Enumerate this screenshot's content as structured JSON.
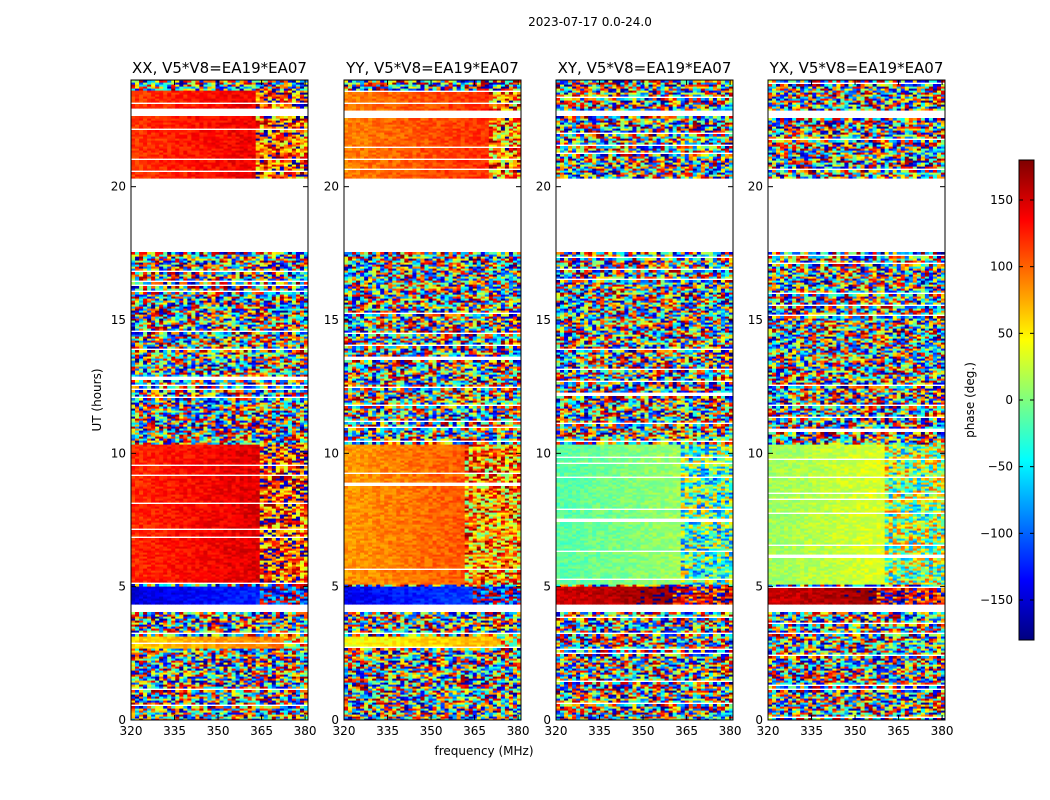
{
  "suptitle": "2023-07-17 0.0-24.0",
  "colorbar": {
    "label": "phase (deg.)",
    "min": -180,
    "max": 180,
    "ticks": [
      150,
      100,
      50,
      0,
      -50,
      -100,
      -150
    ],
    "tick_labels": [
      "150",
      "100",
      "50",
      "0",
      "−50",
      "−100",
      "−150"
    ],
    "colormap": "jet",
    "colors": [
      "#00007f",
      "#0000ff",
      "#007fff",
      "#00ffff",
      "#7fff7f",
      "#ffff00",
      "#ff7f00",
      "#ff0000",
      "#7f0000"
    ]
  },
  "chart_data": [
    {
      "type": "heatmap",
      "title": "XX, V5*V8=EA19*EA07",
      "product": "XX",
      "xlabel": "",
      "ylabel": "UT (hours)",
      "xlim": [
        320,
        381
      ],
      "ylim": [
        0,
        24
      ],
      "xticks": [
        320,
        335,
        350,
        365,
        380
      ],
      "xtick_labels": [
        "320",
        "335",
        "350",
        "365",
        "380"
      ],
      "yticks": [
        0,
        5,
        10,
        15,
        20
      ],
      "ytick_labels": [
        "0",
        "5",
        "10",
        "15",
        "20"
      ],
      "flagged_hours": [
        [
          20.1,
          20.3
        ],
        [
          4.0,
          4.3
        ],
        [
          3.2,
          3.3
        ],
        [
          22.6,
          22.8
        ]
      ],
      "coherent_bands": [
        {
          "hours": [
            20.3,
            23.6
          ],
          "phase_deg": 115,
          "rfi_above_mhz": 363
        },
        {
          "hours": [
            5.1,
            10.3
          ],
          "phase_deg": 120,
          "rfi_above_mhz": 364
        },
        {
          "hours": [
            4.3,
            5.0
          ],
          "phase_deg": -150,
          "rfi_above_mhz": 365
        },
        {
          "hours": [
            2.7,
            3.1
          ],
          "phase_deg": 60,
          "rfi_above_mhz": 372
        }
      ],
      "noise_bands": [
        [
          0,
          2.7
        ],
        [
          10.3,
          17.5
        ],
        [
          23.6,
          24
        ]
      ]
    },
    {
      "type": "heatmap",
      "title": "YY, V5*V8=EA19*EA07",
      "product": "YY",
      "xlabel": "frequency (MHz)",
      "ylabel": "",
      "xlim": [
        320,
        381
      ],
      "ylim": [
        0,
        24
      ],
      "xticks": [
        320,
        335,
        350,
        365,
        380
      ],
      "xtick_labels": [
        "320",
        "335",
        "350",
        "365",
        "380"
      ],
      "yticks": [
        0,
        5,
        10,
        15,
        20
      ],
      "ytick_labels": [
        "0",
        "5",
        "10",
        "15",
        "20"
      ],
      "flagged_hours": [
        [
          20.1,
          20.3
        ],
        [
          4.0,
          4.3
        ],
        [
          3.2,
          3.3
        ],
        [
          22.6,
          22.8
        ]
      ],
      "coherent_bands": [
        {
          "hours": [
            20.3,
            23.6
          ],
          "phase_deg": 90,
          "rfi_above_mhz": 370
        },
        {
          "hours": [
            5.1,
            10.3
          ],
          "phase_deg": 80,
          "rfi_above_mhz": 362
        },
        {
          "hours": [
            4.3,
            5.0
          ],
          "phase_deg": -140,
          "rfi_above_mhz": 365
        },
        {
          "hours": [
            2.7,
            3.1
          ],
          "phase_deg": 40,
          "rfi_above_mhz": 372
        }
      ],
      "noise_bands": [
        [
          0,
          2.7
        ],
        [
          10.3,
          17.5
        ],
        [
          23.6,
          24
        ]
      ]
    },
    {
      "type": "heatmap",
      "title": "XY, V5*V8=EA19*EA07",
      "product": "XY",
      "xlabel": "",
      "ylabel": "",
      "xlim": [
        320,
        381
      ],
      "ylim": [
        0,
        24
      ],
      "xticks": [
        320,
        335,
        350,
        365,
        380
      ],
      "xtick_labels": [
        "320",
        "335",
        "350",
        "365",
        "380"
      ],
      "yticks": [
        0,
        5,
        10,
        15,
        20
      ],
      "ytick_labels": [
        "0",
        "5",
        "10",
        "15",
        "20"
      ],
      "flagged_hours": [
        [
          20.1,
          20.3
        ],
        [
          4.0,
          4.3
        ],
        [
          3.2,
          3.3
        ],
        [
          22.6,
          22.8
        ]
      ],
      "coherent_bands": [
        {
          "hours": [
            5.1,
            10.3
          ],
          "phase_deg": -15,
          "rfi_above_mhz": 363
        },
        {
          "hours": [
            4.3,
            5.0
          ],
          "phase_deg": 150,
          "rfi_above_mhz": 360
        }
      ],
      "noise_bands": [
        [
          0,
          4.3
        ],
        [
          10.3,
          24
        ]
      ]
    },
    {
      "type": "heatmap",
      "title": "YX, V5*V8=EA19*EA07",
      "product": "YX",
      "xlabel": "",
      "ylabel": "",
      "xlim": [
        320,
        381
      ],
      "ylim": [
        0,
        24
      ],
      "xticks": [
        320,
        335,
        350,
        365,
        380
      ],
      "xtick_labels": [
        "320",
        "335",
        "350",
        "365",
        "380"
      ],
      "yticks": [
        0,
        5,
        10,
        15,
        20
      ],
      "ytick_labels": [
        "0",
        "5",
        "10",
        "15",
        "20"
      ],
      "flagged_hours": [
        [
          20.1,
          20.3
        ],
        [
          4.0,
          4.3
        ],
        [
          3.2,
          3.3
        ],
        [
          22.6,
          22.8
        ]
      ],
      "coherent_bands": [
        {
          "hours": [
            5.1,
            10.3
          ],
          "phase_deg": 10,
          "rfi_above_mhz": 360
        },
        {
          "hours": [
            4.3,
            5.0
          ],
          "phase_deg": 150,
          "rfi_above_mhz": 358
        }
      ],
      "noise_bands": [
        [
          0,
          4.3
        ],
        [
          10.3,
          24
        ]
      ]
    }
  ]
}
